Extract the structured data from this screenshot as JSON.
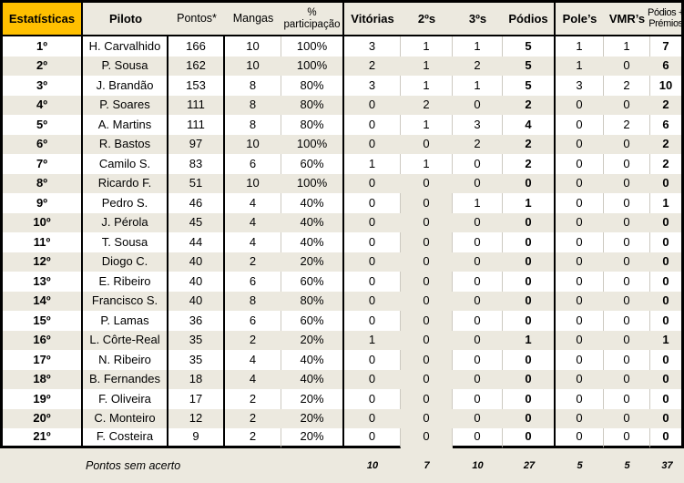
{
  "colors": {
    "accent_gold": "#FFC000",
    "stripe_beige": "#ECE9DF",
    "grid_line": "#CCC9C0",
    "border_black": "#000000"
  },
  "header": {
    "estatisticas": "Estatísticas",
    "piloto": "Piloto",
    "pontos": "Pontos*",
    "mangas": "Mangas",
    "participacao_line1": "%",
    "participacao_line2": "participação",
    "vitorias": "Vitórias",
    "segundos": "2ºs",
    "terceiros": "3ºs",
    "podios": "Pódios",
    "poles": "Pole’s",
    "vmrs": "VMR’s",
    "podios_premios_line1": "Pódios +",
    "podios_premios_line2": "Prémios"
  },
  "rows": [
    {
      "pos": "1º",
      "piloto": "H. Carvalhido",
      "pontos": "166",
      "mangas": "10",
      "part": "100%",
      "vit": "3",
      "p2": "1",
      "p3": "1",
      "pod": "5",
      "pole": "1",
      "vmr": "1",
      "pp": "7"
    },
    {
      "pos": "2º",
      "piloto": "P. Sousa",
      "pontos": "162",
      "mangas": "10",
      "part": "100%",
      "vit": "2",
      "p2": "1",
      "p3": "2",
      "pod": "5",
      "pole": "1",
      "vmr": "0",
      "pp": "6"
    },
    {
      "pos": "3º",
      "piloto": "J. Brandão",
      "pontos": "153",
      "mangas": "8",
      "part": "80%",
      "vit": "3",
      "p2": "1",
      "p3": "1",
      "pod": "5",
      "pole": "3",
      "vmr": "2",
      "pp": "10"
    },
    {
      "pos": "4º",
      "piloto": "P. Soares",
      "pontos": "111",
      "mangas": "8",
      "part": "80%",
      "vit": "0",
      "p2": "2",
      "p3": "0",
      "pod": "2",
      "pole": "0",
      "vmr": "0",
      "pp": "2"
    },
    {
      "pos": "5º",
      "piloto": "A. Martins",
      "pontos": "111",
      "mangas": "8",
      "part": "80%",
      "vit": "0",
      "p2": "1",
      "p3": "3",
      "pod": "4",
      "pole": "0",
      "vmr": "2",
      "pp": "6"
    },
    {
      "pos": "6º",
      "piloto": "R. Bastos",
      "pontos": "97",
      "mangas": "10",
      "part": "100%",
      "vit": "0",
      "p2": "0",
      "p3": "2",
      "pod": "2",
      "pole": "0",
      "vmr": "0",
      "pp": "2"
    },
    {
      "pos": "7º",
      "piloto": "Camilo S.",
      "pontos": "83",
      "mangas": "6",
      "part": "60%",
      "vit": "1",
      "p2": "1",
      "p3": "0",
      "pod": "2",
      "pole": "0",
      "vmr": "0",
      "pp": "2"
    },
    {
      "pos": "8º",
      "piloto": "Ricardo F.",
      "pontos": "51",
      "mangas": "10",
      "part": "100%",
      "vit": "0",
      "p2": "0",
      "p3": "0",
      "pod": "0",
      "pole": "0",
      "vmr": "0",
      "pp": "0"
    },
    {
      "pos": "9º",
      "piloto": "Pedro S.",
      "pontos": "46",
      "mangas": "4",
      "part": "40%",
      "vit": "0",
      "p2": "0",
      "p3": "1",
      "pod": "1",
      "pole": "0",
      "vmr": "0",
      "pp": "1"
    },
    {
      "pos": "10º",
      "piloto": "J. Pérola",
      "pontos": "45",
      "mangas": "4",
      "part": "40%",
      "vit": "0",
      "p2": "0",
      "p3": "0",
      "pod": "0",
      "pole": "0",
      "vmr": "0",
      "pp": "0"
    },
    {
      "pos": "11º",
      "piloto": "T. Sousa",
      "pontos": "44",
      "mangas": "4",
      "part": "40%",
      "vit": "0",
      "p2": "0",
      "p3": "0",
      "pod": "0",
      "pole": "0",
      "vmr": "0",
      "pp": "0"
    },
    {
      "pos": "12º",
      "piloto": "Diogo C.",
      "pontos": "40",
      "mangas": "2",
      "part": "20%",
      "vit": "0",
      "p2": "0",
      "p3": "0",
      "pod": "0",
      "pole": "0",
      "vmr": "0",
      "pp": "0"
    },
    {
      "pos": "13º",
      "piloto": "E. Ribeiro",
      "pontos": "40",
      "mangas": "6",
      "part": "60%",
      "vit": "0",
      "p2": "0",
      "p3": "0",
      "pod": "0",
      "pole": "0",
      "vmr": "0",
      "pp": "0"
    },
    {
      "pos": "14º",
      "piloto": "Francisco S.",
      "pontos": "40",
      "mangas": "8",
      "part": "80%",
      "vit": "0",
      "p2": "0",
      "p3": "0",
      "pod": "0",
      "pole": "0",
      "vmr": "0",
      "pp": "0"
    },
    {
      "pos": "15º",
      "piloto": "P. Lamas",
      "pontos": "36",
      "mangas": "6",
      "part": "60%",
      "vit": "0",
      "p2": "0",
      "p3": "0",
      "pod": "0",
      "pole": "0",
      "vmr": "0",
      "pp": "0"
    },
    {
      "pos": "16º",
      "piloto": "L. Côrte-Real",
      "pontos": "35",
      "mangas": "2",
      "part": "20%",
      "vit": "1",
      "p2": "0",
      "p3": "0",
      "pod": "1",
      "pole": "0",
      "vmr": "0",
      "pp": "1"
    },
    {
      "pos": "17º",
      "piloto": "N. Ribeiro",
      "pontos": "35",
      "mangas": "4",
      "part": "40%",
      "vit": "0",
      "p2": "0",
      "p3": "0",
      "pod": "0",
      "pole": "0",
      "vmr": "0",
      "pp": "0"
    },
    {
      "pos": "18º",
      "piloto": "B. Fernandes",
      "pontos": "18",
      "mangas": "4",
      "part": "40%",
      "vit": "0",
      "p2": "0",
      "p3": "0",
      "pod": "0",
      "pole": "0",
      "vmr": "0",
      "pp": "0"
    },
    {
      "pos": "19º",
      "piloto": "F. Oliveira",
      "pontos": "17",
      "mangas": "2",
      "part": "20%",
      "vit": "0",
      "p2": "0",
      "p3": "0",
      "pod": "0",
      "pole": "0",
      "vmr": "0",
      "pp": "0"
    },
    {
      "pos": "20º",
      "piloto": "C. Monteiro",
      "pontos": "12",
      "mangas": "2",
      "part": "20%",
      "vit": "0",
      "p2": "0",
      "p3": "0",
      "pod": "0",
      "pole": "0",
      "vmr": "0",
      "pp": "0"
    },
    {
      "pos": "21º",
      "piloto": "F. Costeira",
      "pontos": "9",
      "mangas": "2",
      "part": "20%",
      "vit": "0",
      "p2": "0",
      "p3": "0",
      "pod": "0",
      "pole": "0",
      "vmr": "0",
      "pp": "0"
    }
  ],
  "footer": {
    "label": "Pontos sem acerto",
    "vit": "10",
    "p2": "7",
    "p3": "10",
    "pod": "27",
    "pole": "5",
    "vmr": "5",
    "pp": "37"
  }
}
